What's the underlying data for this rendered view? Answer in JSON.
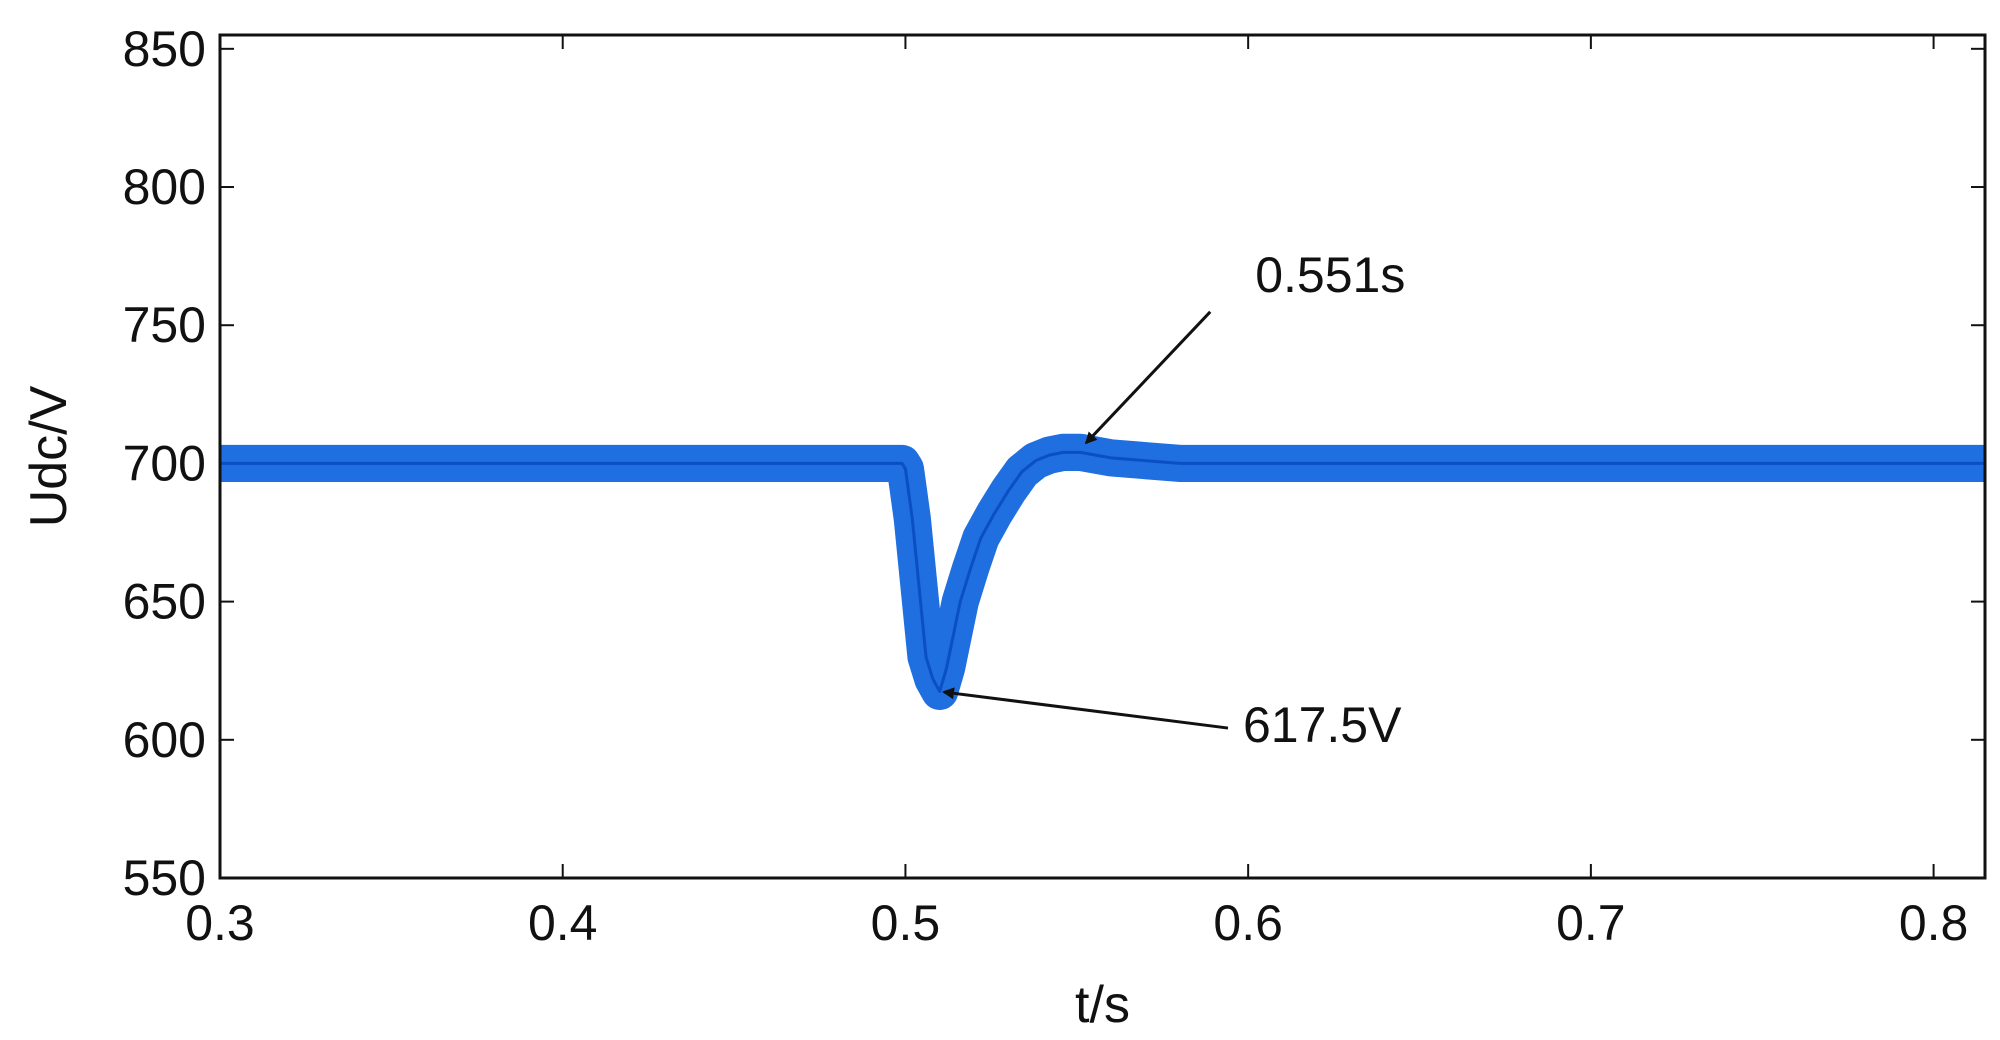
{
  "chart_data": {
    "type": "line",
    "title": "",
    "xlabel": "t/s",
    "ylabel": "Udc/V",
    "xlim": [
      0.3,
      0.815
    ],
    "ylim": [
      550,
      855
    ],
    "x_ticks": [
      0.3,
      0.4,
      0.5,
      0.6,
      0.7,
      0.8
    ],
    "x_tick_labels": [
      "0.3",
      "0.4",
      "0.5",
      "0.6",
      "0.7",
      "0.8"
    ],
    "y_ticks": [
      550,
      600,
      650,
      700,
      750,
      800,
      850
    ],
    "y_tick_labels": [
      "550",
      "600",
      "650",
      "700",
      "750",
      "800",
      "850"
    ],
    "grid": false,
    "legend": "none",
    "series": [
      {
        "color": "#1f6fe0",
        "ripple_band": 6,
        "x": [
          0.3,
          0.35,
          0.4,
          0.45,
          0.499,
          0.5,
          0.502,
          0.504,
          0.506,
          0.508,
          0.51,
          0.512,
          0.514,
          0.516,
          0.519,
          0.522,
          0.526,
          0.53,
          0.534,
          0.538,
          0.542,
          0.546,
          0.551,
          0.56,
          0.58,
          0.6,
          0.65,
          0.7,
          0.75,
          0.8,
          0.815
        ],
        "y": [
          700,
          700,
          700,
          700,
          700,
          698,
          680,
          655,
          630,
          622,
          617.5,
          626,
          638,
          650,
          662,
          673,
          682,
          690,
          697,
          701,
          703,
          704,
          704,
          702,
          700,
          700,
          700,
          700,
          700,
          700,
          700
        ]
      }
    ],
    "annotations": [
      {
        "text": "0.551s",
        "x": 0.551,
        "y": 706
      },
      {
        "text": "617.5V",
        "x": 0.5095,
        "y": 618
      }
    ]
  }
}
